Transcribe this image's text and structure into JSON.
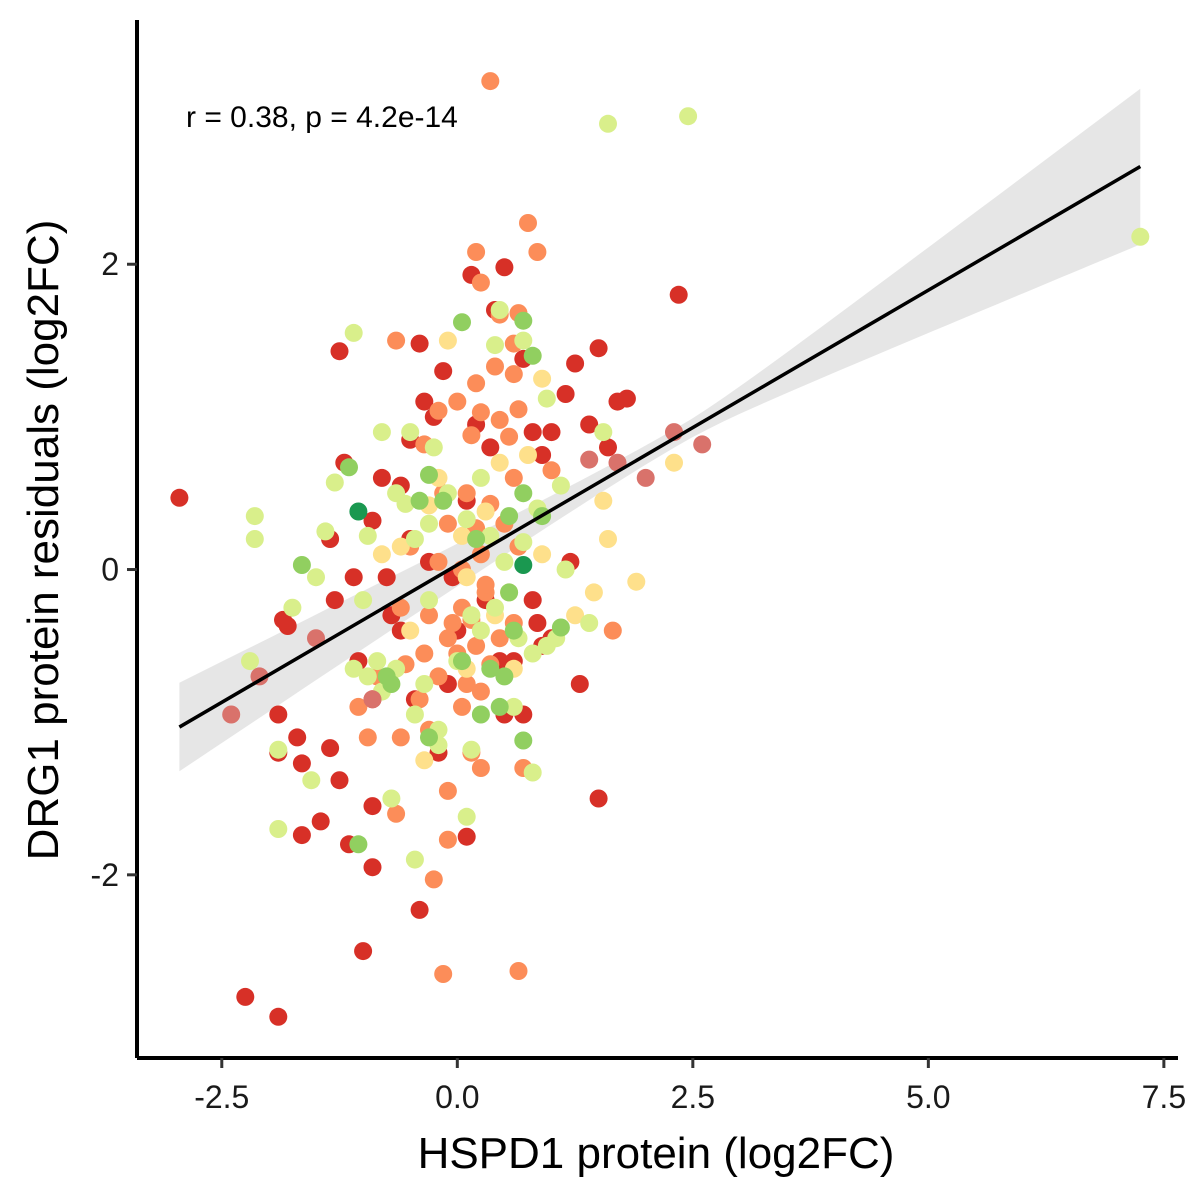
{
  "chart_data": {
    "type": "scatter",
    "title": "",
    "xlabel": "HSPD1 protein (log2FC)",
    "ylabel": "DRG1 protein residuals (log2FC)",
    "xlim": [
      -3.4,
      7.65
    ],
    "ylim": [
      -3.2,
      3.6
    ],
    "x_ticks": [
      -2.5,
      0.0,
      2.5,
      5.0,
      7.5
    ],
    "x_tick_labels": [
      "-2.5",
      "0.0",
      "2.5",
      "5.0",
      "7.5"
    ],
    "y_ticks": [
      -2,
      0,
      2
    ],
    "y_tick_labels": [
      "-2",
      "0",
      "2"
    ],
    "grid": false,
    "legend": "none",
    "annotation": "r = 0.38, p = 4.2e-14",
    "regression": {
      "x_range": [
        -2.95,
        7.25
      ],
      "intercept": 0.03,
      "slope": 0.36,
      "ci_lower_at_ends": [
        -1.35,
        2.3
      ],
      "ci_upper_at_ends": [
        -0.77,
        3.32
      ]
    },
    "palette": {
      "dark_red": "#d73027",
      "orange": "#fc8d59",
      "yellow": "#fee08b",
      "light_green": "#d9ef8b",
      "green": "#91cf60",
      "dark_green": "#1a9850",
      "line": "#000000",
      "band": "#d9d9d9"
    },
    "series": [
      {
        "color": "#d73027",
        "points": [
          [
            -2.95,
            0.47
          ],
          [
            -2.25,
            -2.8
          ],
          [
            -1.9,
            -2.93
          ],
          [
            -1.9,
            -0.95
          ],
          [
            -1.9,
            -1.2
          ],
          [
            -1.8,
            -0.37
          ],
          [
            -1.85,
            -0.33
          ],
          [
            -1.7,
            -1.1
          ],
          [
            -1.65,
            -1.27
          ],
          [
            -1.65,
            -1.74
          ],
          [
            -1.45,
            -1.65
          ],
          [
            -1.35,
            -1.17
          ],
          [
            -1.3,
            -0.2
          ],
          [
            -1.35,
            0.2
          ],
          [
            -1.25,
            1.43
          ],
          [
            -1.25,
            -1.38
          ],
          [
            -1.15,
            -1.8
          ],
          [
            -1.0,
            -2.5
          ],
          [
            -0.9,
            -1.95
          ],
          [
            -0.9,
            -1.55
          ],
          [
            -0.9,
            0.32
          ],
          [
            -0.75,
            -0.05
          ],
          [
            -0.6,
            0.55
          ],
          [
            -0.5,
            0.85
          ],
          [
            -0.4,
            1.48
          ],
          [
            -0.35,
            1.1
          ],
          [
            -0.4,
            -2.23
          ],
          [
            -0.25,
            1.0
          ],
          [
            -0.15,
            1.3
          ],
          [
            0.15,
            1.93
          ],
          [
            0.35,
            0.8
          ],
          [
            0.4,
            1.7
          ],
          [
            0.5,
            1.98
          ],
          [
            0.7,
            1.38
          ],
          [
            0.8,
            0.9
          ],
          [
            0.9,
            -0.5
          ],
          [
            1.0,
            0.9
          ],
          [
            1.15,
            1.15
          ],
          [
            1.25,
            1.35
          ],
          [
            1.3,
            -0.75
          ],
          [
            1.4,
            0.95
          ],
          [
            1.5,
            1.45
          ],
          [
            1.5,
            -1.5
          ],
          [
            1.7,
            1.1
          ],
          [
            1.8,
            1.12
          ],
          [
            2.35,
            1.8
          ],
          [
            -1.1,
            -0.05
          ],
          [
            -1.05,
            -0.6
          ],
          [
            -0.7,
            -0.3
          ],
          [
            -0.5,
            0.2
          ],
          [
            -0.3,
            0.05
          ],
          [
            0.0,
            -0.4
          ],
          [
            0.1,
            0.45
          ],
          [
            0.3,
            -0.2
          ],
          [
            0.5,
            -0.95
          ],
          [
            0.6,
            -0.6
          ],
          [
            0.8,
            -0.2
          ],
          [
            1.0,
            -0.45
          ],
          [
            1.2,
            0.05
          ],
          [
            -0.2,
            -1.2
          ],
          [
            0.1,
            -1.75
          ],
          [
            -0.6,
            -0.4
          ],
          [
            -0.8,
            0.6
          ],
          [
            -1.2,
            0.7
          ],
          [
            -0.45,
            -0.85
          ],
          [
            0.2,
            0.95
          ],
          [
            0.9,
            0.75
          ],
          [
            1.6,
            0.8
          ],
          [
            -0.1,
            -0.75
          ],
          [
            0.7,
            -0.95
          ],
          [
            -0.9,
            -0.85
          ],
          [
            0.45,
            -0.6
          ],
          [
            -0.05,
            -0.05
          ],
          [
            0.85,
            -0.35
          ]
        ]
      },
      {
        "color": "#fc8d59",
        "points": [
          [
            0.35,
            3.2
          ],
          [
            0.75,
            2.27
          ],
          [
            0.2,
            2.08
          ],
          [
            0.85,
            2.08
          ],
          [
            0.25,
            1.88
          ],
          [
            0.45,
            1.67
          ],
          [
            0.65,
            1.68
          ],
          [
            -0.65,
            1.5
          ],
          [
            0.6,
            1.48
          ],
          [
            0.4,
            1.33
          ],
          [
            0.6,
            1.28
          ],
          [
            0.2,
            1.22
          ],
          [
            0.0,
            1.1
          ],
          [
            0.25,
            1.03
          ],
          [
            0.45,
            0.98
          ],
          [
            0.65,
            1.05
          ],
          [
            0.55,
            0.87
          ],
          [
            0.15,
            0.88
          ],
          [
            -0.2,
            1.04
          ],
          [
            -0.35,
            0.82
          ],
          [
            0.6,
            0.6
          ],
          [
            0.35,
            0.43
          ],
          [
            0.1,
            0.5
          ],
          [
            -0.1,
            0.3
          ],
          [
            0.2,
            0.27
          ],
          [
            -0.5,
            0.15
          ],
          [
            -0.2,
            0.05
          ],
          [
            0.05,
            0.0
          ],
          [
            0.3,
            -0.15
          ],
          [
            0.05,
            -0.25
          ],
          [
            -0.3,
            -0.3
          ],
          [
            0.15,
            -0.33
          ],
          [
            0.6,
            -0.35
          ],
          [
            -0.1,
            -0.45
          ],
          [
            0.2,
            -0.5
          ],
          [
            -0.35,
            -0.55
          ],
          [
            0.0,
            -0.55
          ],
          [
            0.35,
            -0.62
          ],
          [
            -0.55,
            -0.62
          ],
          [
            -0.2,
            -0.7
          ],
          [
            0.25,
            -0.8
          ],
          [
            -0.4,
            -0.85
          ],
          [
            0.05,
            -0.9
          ],
          [
            -0.3,
            -1.05
          ],
          [
            -0.6,
            -1.1
          ],
          [
            0.15,
            -1.2
          ],
          [
            0.25,
            -1.3
          ],
          [
            -0.1,
            -1.45
          ],
          [
            -0.65,
            -1.6
          ],
          [
            -0.1,
            -1.77
          ],
          [
            -0.25,
            -2.03
          ],
          [
            -0.15,
            -2.65
          ],
          [
            0.65,
            -2.63
          ],
          [
            -1.05,
            -0.9
          ],
          [
            -0.95,
            -1.1
          ],
          [
            -0.85,
            -0.7
          ],
          [
            0.1,
            -0.75
          ],
          [
            0.45,
            -0.45
          ],
          [
            0.7,
            -1.3
          ],
          [
            1.65,
            -0.4
          ],
          [
            0.3,
            -0.1
          ],
          [
            -0.05,
            -0.35
          ],
          [
            0.5,
            0.3
          ],
          [
            -0.15,
            0.5
          ],
          [
            0.65,
            0.15
          ],
          [
            1.0,
            0.65
          ],
          [
            -0.6,
            -0.25
          ],
          [
            0.25,
            0.1
          ]
        ]
      },
      {
        "color": "#fee08b",
        "points": [
          [
            0.9,
            1.25
          ],
          [
            1.55,
            0.45
          ],
          [
            1.6,
            0.2
          ],
          [
            1.45,
            -0.15
          ],
          [
            1.9,
            -0.08
          ],
          [
            -0.35,
            -1.25
          ],
          [
            -0.5,
            -0.4
          ],
          [
            -0.6,
            0.15
          ],
          [
            0.05,
            0.22
          ],
          [
            0.45,
            0.7
          ],
          [
            0.75,
            0.75
          ],
          [
            -0.2,
            0.6
          ],
          [
            0.1,
            -0.05
          ],
          [
            0.6,
            -0.65
          ],
          [
            -0.3,
            0.42
          ],
          [
            0.3,
            0.38
          ],
          [
            0.9,
            0.1
          ],
          [
            1.25,
            -0.3
          ],
          [
            0.1,
            -0.65
          ],
          [
            0.4,
            -0.3
          ],
          [
            -0.8,
            0.1
          ],
          [
            -0.1,
            1.5
          ],
          [
            2.3,
            0.7
          ],
          [
            0.55,
            -0.15
          ]
        ]
      },
      {
        "color": "#d9ef8b",
        "points": [
          [
            1.6,
            2.92
          ],
          [
            2.45,
            2.97
          ],
          [
            7.25,
            2.18
          ],
          [
            -1.1,
            1.55
          ],
          [
            0.45,
            1.7
          ],
          [
            0.7,
            1.5
          ],
          [
            0.4,
            1.47
          ],
          [
            0.95,
            1.12
          ],
          [
            1.55,
            0.9
          ],
          [
            -0.8,
            0.9
          ],
          [
            -0.5,
            0.9
          ],
          [
            -0.25,
            0.8
          ],
          [
            -2.15,
            0.35
          ],
          [
            -2.15,
            0.2
          ],
          [
            -1.4,
            0.25
          ],
          [
            -1.3,
            0.57
          ],
          [
            -0.95,
            0.22
          ],
          [
            -0.65,
            0.5
          ],
          [
            -0.55,
            0.43
          ],
          [
            -0.3,
            0.3
          ],
          [
            0.1,
            0.33
          ],
          [
            0.35,
            0.22
          ],
          [
            0.7,
            0.18
          ],
          [
            1.15,
            -0.0
          ],
          [
            -1.75,
            -0.25
          ],
          [
            -1.5,
            -0.05
          ],
          [
            -1.0,
            -0.2
          ],
          [
            -1.1,
            -0.65
          ],
          [
            -0.85,
            -0.6
          ],
          [
            -0.95,
            -0.7
          ],
          [
            -0.8,
            -0.8
          ],
          [
            -0.65,
            -0.65
          ],
          [
            -0.35,
            -0.75
          ],
          [
            -0.45,
            -0.95
          ],
          [
            0.0,
            -0.6
          ],
          [
            0.25,
            -0.4
          ],
          [
            0.4,
            -0.25
          ],
          [
            0.8,
            -0.55
          ],
          [
            1.05,
            -0.45
          ],
          [
            1.4,
            -0.35
          ],
          [
            -2.2,
            -0.6
          ],
          [
            -1.9,
            -1.18
          ],
          [
            -1.55,
            -1.38
          ],
          [
            -1.9,
            -1.7
          ],
          [
            -0.7,
            -1.5
          ],
          [
            -0.45,
            -1.9
          ],
          [
            0.1,
            -1.62
          ],
          [
            0.15,
            -1.18
          ],
          [
            -0.2,
            -1.15
          ],
          [
            0.8,
            -1.33
          ],
          [
            0.6,
            -0.9
          ],
          [
            -0.3,
            -0.2
          ],
          [
            0.5,
            0.05
          ],
          [
            -0.1,
            0.5
          ],
          [
            0.85,
            0.4
          ],
          [
            0.25,
            0.6
          ],
          [
            -0.45,
            0.2
          ],
          [
            1.1,
            0.55
          ],
          [
            0.95,
            -0.5
          ],
          [
            -0.2,
            -1.05
          ],
          [
            0.15,
            -0.3
          ],
          [
            0.65,
            -0.45
          ]
        ]
      },
      {
        "color": "#91cf60",
        "points": [
          [
            0.05,
            1.62
          ],
          [
            0.7,
            1.63
          ],
          [
            0.8,
            1.4
          ],
          [
            -1.15,
            0.67
          ],
          [
            -1.65,
            0.03
          ],
          [
            -0.3,
            0.62
          ],
          [
            -0.15,
            0.45
          ],
          [
            0.55,
            0.35
          ],
          [
            0.7,
            0.5
          ],
          [
            0.9,
            0.35
          ],
          [
            0.55,
            -0.15
          ],
          [
            0.6,
            -0.4
          ],
          [
            0.35,
            -0.65
          ],
          [
            0.5,
            -0.7
          ],
          [
            -0.75,
            -0.7
          ],
          [
            -0.7,
            -0.75
          ],
          [
            0.25,
            -0.95
          ],
          [
            0.45,
            -0.9
          ],
          [
            -0.3,
            -1.1
          ],
          [
            0.7,
            -1.12
          ],
          [
            -1.05,
            -1.8
          ],
          [
            0.05,
            -0.6
          ],
          [
            0.2,
            0.2
          ],
          [
            -0.4,
            0.45
          ],
          [
            1.1,
            -0.38
          ]
        ]
      },
      {
        "color": "#1a9850",
        "points": [
          [
            0.7,
            0.03
          ],
          [
            -1.05,
            0.38
          ]
        ]
      },
      {
        "color": "#d9726b",
        "points": [
          [
            2.6,
            0.82
          ],
          [
            2.3,
            0.9
          ],
          [
            2.0,
            0.6
          ],
          [
            1.7,
            0.7
          ],
          [
            1.4,
            0.72
          ],
          [
            -2.4,
            -0.95
          ],
          [
            -2.1,
            -0.7
          ],
          [
            -1.5,
            -0.45
          ],
          [
            -0.9,
            -0.85
          ]
        ]
      }
    ]
  }
}
